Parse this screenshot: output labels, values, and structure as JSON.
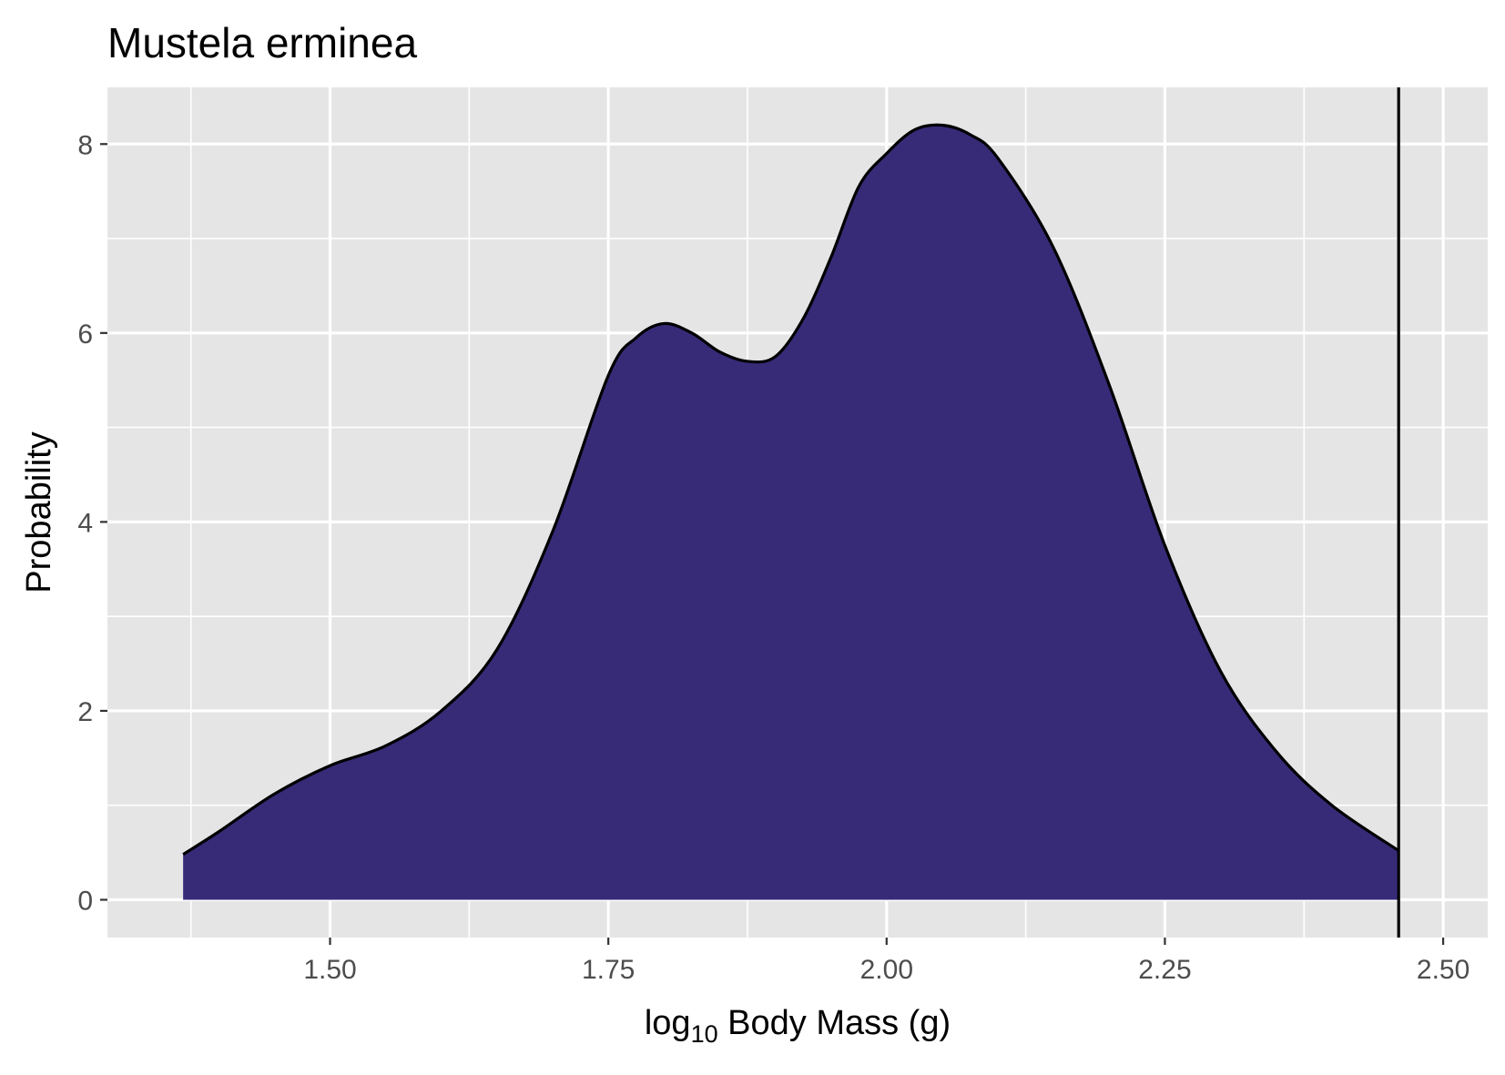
{
  "chart_data": {
    "type": "area",
    "title": "Mustela erminea",
    "xlabel": {
      "prefix": "log",
      "subscript": "10",
      "suffix": " Body Mass (g)"
    },
    "ylabel": "Probability",
    "xlim": [
      1.3,
      2.54
    ],
    "ylim": [
      -0.4,
      8.6
    ],
    "x_ticks": [
      1.5,
      1.75,
      2.0,
      2.25,
      2.5
    ],
    "x_tick_labels": [
      "1.50",
      "1.75",
      "2.00",
      "2.25",
      "2.50"
    ],
    "y_ticks": [
      0,
      2,
      4,
      6,
      8
    ],
    "y_tick_labels": [
      "0",
      "2",
      "4",
      "6",
      "8"
    ],
    "grid": true,
    "legend": "none",
    "reference_line_x": 2.46,
    "series": [
      {
        "x": [
          1.368,
          1.4,
          1.45,
          1.5,
          1.55,
          1.6,
          1.65,
          1.7,
          1.75,
          1.775,
          1.8,
          1.825,
          1.85,
          1.875,
          1.9,
          1.925,
          1.95,
          1.975,
          2.0,
          2.025,
          2.05,
          2.075,
          2.1,
          2.15,
          2.2,
          2.25,
          2.3,
          2.35,
          2.4,
          2.46
        ],
        "y": [
          0.48,
          0.72,
          1.12,
          1.42,
          1.63,
          2.0,
          2.65,
          3.9,
          5.55,
          5.95,
          6.1,
          6.0,
          5.8,
          5.7,
          5.75,
          6.15,
          6.8,
          7.55,
          7.9,
          8.15,
          8.2,
          8.1,
          7.85,
          6.9,
          5.45,
          3.75,
          2.42,
          1.57,
          1.0,
          0.52
        ]
      }
    ],
    "colors": {
      "fill": "#372b78",
      "outline": "#000000",
      "panel": "#e5e5e5",
      "grid": "#ffffff"
    }
  }
}
